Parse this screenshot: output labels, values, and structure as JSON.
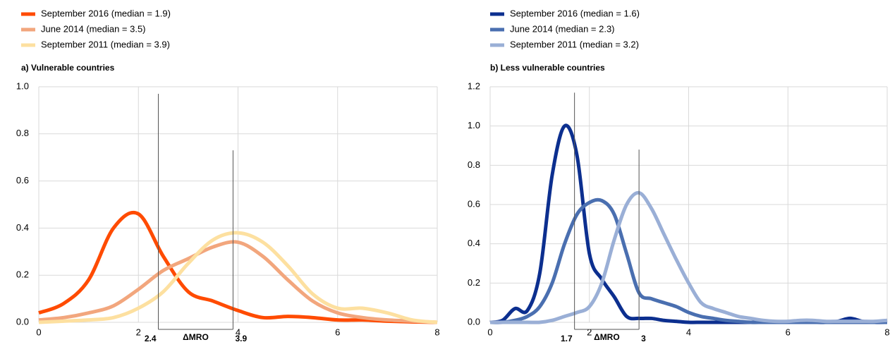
{
  "chart_data": [
    {
      "type": "line",
      "title": "a) Vulnerable countries",
      "x": [
        0,
        0.5,
        1,
        1.5,
        2,
        2.5,
        3,
        3.5,
        4,
        4.5,
        5,
        5.5,
        6,
        6.5,
        7,
        7.5,
        8
      ],
      "series": [
        {
          "name": "September 2016 (median = 1.9)",
          "color": "#ff4b00",
          "values": [
            0.04,
            0.08,
            0.18,
            0.4,
            0.46,
            0.28,
            0.13,
            0.09,
            0.05,
            0.02,
            0.025,
            0.02,
            0.01,
            0.01,
            0.005,
            0.002,
            0
          ]
        },
        {
          "name": "June 2014 (median = 3.5)",
          "color": "#f2a67d",
          "values": [
            0.01,
            0.02,
            0.04,
            0.07,
            0.14,
            0.22,
            0.27,
            0.32,
            0.34,
            0.28,
            0.18,
            0.09,
            0.04,
            0.02,
            0.01,
            0.005,
            0
          ]
        },
        {
          "name": "September 2011 (median = 3.9)",
          "color": "#fde0a0",
          "values": [
            0,
            0.005,
            0.01,
            0.02,
            0.06,
            0.13,
            0.25,
            0.35,
            0.38,
            0.34,
            0.24,
            0.12,
            0.06,
            0.06,
            0.04,
            0.01,
            0
          ]
        }
      ],
      "xlim": [
        0,
        8
      ],
      "xticks": [
        0,
        2,
        4,
        6,
        8
      ],
      "ylim": [
        0,
        1
      ],
      "yticks": [
        {
          "value": 0,
          "label": "0.0"
        },
        0.2,
        0.4,
        0.6,
        0.8,
        {
          "value": 1,
          "label": "1.0"
        }
      ],
      "grid": true,
      "annotations": [
        {
          "x": 2.4,
          "top": 0.97,
          "label": "2.4"
        },
        {
          "x": 3.9,
          "top": 0.73,
          "label": "3.9"
        }
      ],
      "annotation_label": "ΔMRO"
    },
    {
      "type": "line",
      "title": "b) Less vulnerable countries",
      "x": [
        0,
        0.25,
        0.5,
        0.75,
        1,
        1.25,
        1.5,
        1.75,
        2,
        2.25,
        2.5,
        2.75,
        3,
        3.25,
        3.5,
        3.75,
        4,
        4.25,
        4.5,
        4.75,
        5,
        5.25,
        5.5,
        5.75,
        6,
        6.25,
        6.5,
        6.75,
        7,
        7.25,
        7.5,
        7.75,
        8
      ],
      "series": [
        {
          "name": "September 2016 (median = 1.6)",
          "color": "#0c2f8f",
          "values": [
            0,
            0.01,
            0.07,
            0.06,
            0.25,
            0.75,
            1.0,
            0.85,
            0.35,
            0.22,
            0.13,
            0.03,
            0.02,
            0.02,
            0.01,
            0.005,
            0,
            0,
            0,
            0,
            0,
            0,
            0,
            0,
            0,
            0,
            0,
            0,
            0.005,
            0.02,
            0.005,
            0,
            0
          ]
        },
        {
          "name": "June 2014 (median = 2.3)",
          "color": "#4a6fb0",
          "values": [
            0,
            0,
            0.01,
            0.03,
            0.08,
            0.2,
            0.4,
            0.55,
            0.61,
            0.62,
            0.55,
            0.35,
            0.15,
            0.12,
            0.1,
            0.08,
            0.05,
            0.03,
            0.02,
            0.01,
            0.005,
            0,
            0,
            0,
            0,
            0,
            0,
            0,
            0,
            0,
            0,
            0,
            0
          ]
        },
        {
          "name": "September 2011 (median = 3.2)",
          "color": "#9aafd6",
          "values": [
            0,
            0,
            0,
            0,
            0,
            0.01,
            0.03,
            0.05,
            0.08,
            0.2,
            0.42,
            0.6,
            0.66,
            0.58,
            0.45,
            0.32,
            0.2,
            0.1,
            0.07,
            0.05,
            0.03,
            0.02,
            0.01,
            0.005,
            0.005,
            0.01,
            0.01,
            0.005,
            0.005,
            0.005,
            0.005,
            0.005,
            0.01
          ]
        }
      ],
      "xlim": [
        0,
        8
      ],
      "xticks": [
        0,
        2,
        4,
        6,
        8
      ],
      "ylim": [
        0,
        1.2
      ],
      "yticks": [
        {
          "value": 0,
          "label": "0.0"
        },
        0.2,
        0.4,
        0.6,
        0.8,
        {
          "value": 1,
          "label": "1.0"
        },
        1.2
      ],
      "grid": true,
      "annotations": [
        {
          "x": 1.7,
          "top": 1.17,
          "label": "1.7"
        },
        {
          "x": 3,
          "top": 0.88,
          "label": "3"
        }
      ],
      "annotation_label": "ΔMRO"
    }
  ]
}
